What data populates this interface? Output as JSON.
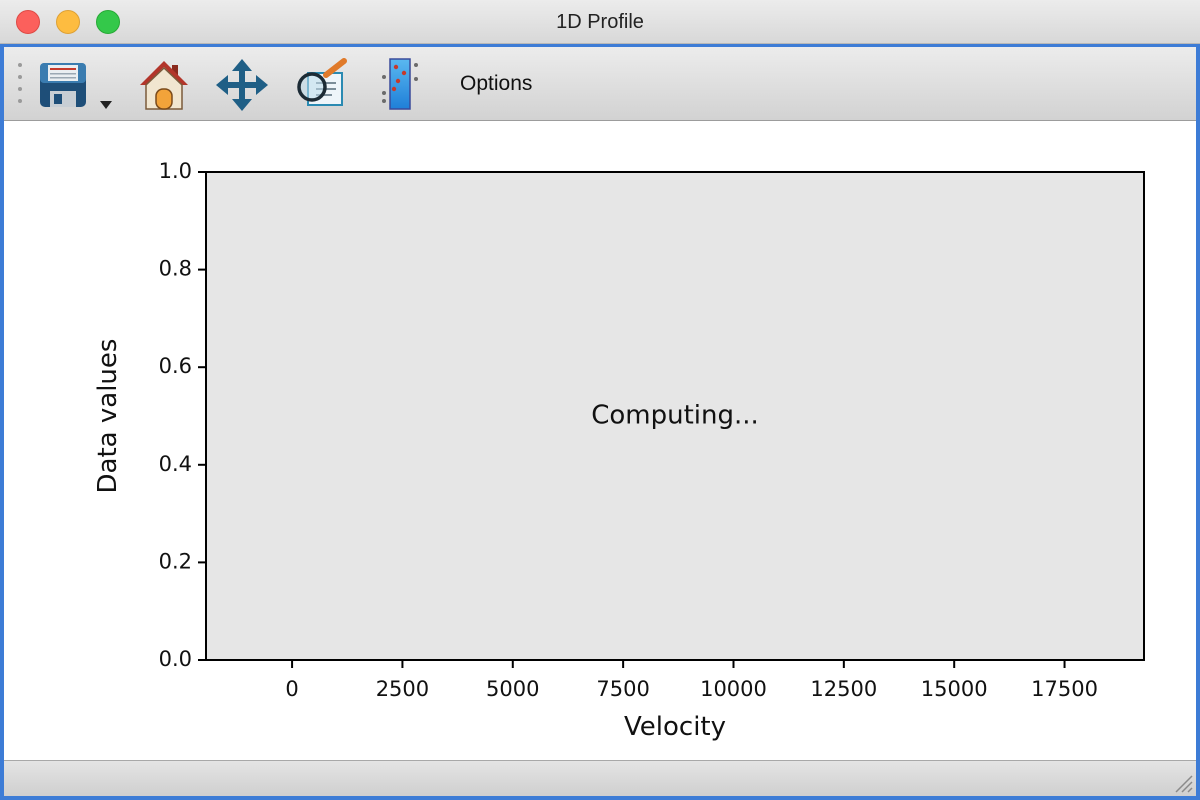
{
  "window": {
    "title": "1D Profile"
  },
  "toolbar": {
    "tools": [
      {
        "name": "save",
        "icon": "floppy-disk-icon",
        "has_dropdown": true
      },
      {
        "name": "home",
        "icon": "home-icon"
      },
      {
        "name": "pan",
        "icon": "move-arrows-icon"
      },
      {
        "name": "zoom",
        "icon": "magnifier-icon"
      },
      {
        "name": "profile",
        "icon": "colorbar-icon"
      }
    ],
    "options_label": "Options"
  },
  "chart_data": {
    "type": "line",
    "series": [],
    "xlabel": "Velocity",
    "ylabel": "Data values",
    "xlim": [
      -1950,
      19300
    ],
    "ylim": [
      0.0,
      1.0
    ],
    "xticks": [
      0,
      2500,
      5000,
      7500,
      10000,
      12500,
      15000,
      17500
    ],
    "xtick_labels": [
      "0",
      "2500",
      "5000",
      "7500",
      "10000",
      "12500",
      "15000",
      "17500"
    ],
    "yticks": [
      0.0,
      0.2,
      0.4,
      0.6,
      0.8,
      1.0
    ],
    "ytick_labels": [
      "0.0",
      "0.2",
      "0.4",
      "0.6",
      "0.8",
      "1.0"
    ],
    "annotation": "Computing...",
    "grid": false,
    "axes_facecolor": "#e6e6e6"
  }
}
